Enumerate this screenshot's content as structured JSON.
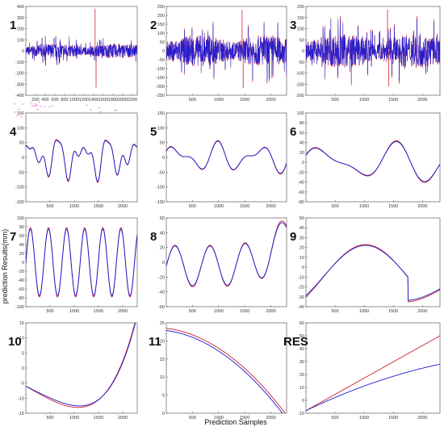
{
  "figure": {
    "ylabel": "prediction Results(mm)",
    "xlabel": "Prediction Samples",
    "series_colors": {
      "actual": "#d0202a",
      "predicted": "#1a1ad8"
    }
  },
  "chart_data": [
    {
      "type": "line",
      "label": "1",
      "xlim": [
        0,
        2300
      ],
      "ylim": [
        -400,
        400
      ],
      "xticks": [
        200,
        400,
        600,
        800,
        1000,
        1200,
        1400,
        1600,
        1800,
        2000,
        2200
      ],
      "yticks": [
        -400,
        -300,
        -200,
        -100,
        0,
        100,
        200,
        300,
        400
      ],
      "pattern": "noise",
      "amp": 60,
      "spikes": [
        [
          1430,
          380
        ],
        [
          1450,
          -330
        ]
      ],
      "pink": true
    },
    {
      "type": "line",
      "label": "2",
      "xlim": [
        0,
        2300
      ],
      "ylim": [
        -250,
        250
      ],
      "xticks": [
        500,
        1000,
        1500,
        2000
      ],
      "yticks": [
        -250,
        -200,
        -150,
        -100,
        -50,
        0,
        50,
        100,
        150,
        200,
        250
      ],
      "pattern": "noise",
      "amp": 80,
      "spikes": [
        [
          1450,
          230
        ],
        [
          1470,
          -210
        ]
      ],
      "pink": false
    },
    {
      "type": "line",
      "label": "3",
      "xlim": [
        0,
        2300
      ],
      "ylim": [
        -200,
        200
      ],
      "xticks": [
        500,
        1000,
        1500,
        2000
      ],
      "yticks": [
        -200,
        -150,
        -100,
        -50,
        0,
        50,
        100,
        150,
        200
      ],
      "pattern": "noise",
      "amp": 70,
      "spikes": [
        [
          1400,
          185
        ],
        [
          1420,
          -160
        ]
      ],
      "pink": false
    },
    {
      "type": "line",
      "label": "4",
      "xlim": [
        0,
        2300
      ],
      "ylim": [
        -150,
        150
      ],
      "xticks": [
        500,
        1000,
        1500,
        2000
      ],
      "yticks": [
        -150,
        -100,
        -50,
        0,
        50,
        100,
        150
      ],
      "pattern": "wave",
      "freqs": [
        [
          0.012,
          45
        ],
        [
          0.019,
          30
        ],
        [
          0.031,
          18
        ]
      ],
      "pink": false
    },
    {
      "type": "line",
      "label": "5",
      "xlim": [
        0,
        2300
      ],
      "ylim": [
        -150,
        150
      ],
      "xticks": [
        500,
        1000,
        1500,
        2000
      ],
      "yticks": [
        -150,
        -100,
        -50,
        0,
        50,
        100,
        150
      ],
      "pattern": "wave",
      "freqs": [
        [
          0.008,
          35
        ],
        [
          0.013,
          22
        ]
      ],
      "pink": false
    },
    {
      "type": "line",
      "label": "6",
      "xlim": [
        0,
        2300
      ],
      "ylim": [
        -80,
        100
      ],
      "xticks": [
        500,
        1000,
        1500,
        2000
      ],
      "yticks": [
        -80,
        -60,
        -40,
        -20,
        0,
        20,
        40,
        60,
        80,
        100
      ],
      "pattern": "wave",
      "freqs": [
        [
          0.0052,
          30
        ],
        [
          0.0081,
          15
        ]
      ],
      "pink": false
    },
    {
      "type": "line",
      "label": "7",
      "xlim": [
        0,
        2300
      ],
      "ylim": [
        -100,
        100
      ],
      "xticks": [
        500,
        1000,
        1500,
        2000
      ],
      "yticks": [
        -100,
        -80,
        -60,
        -40,
        -20,
        0,
        20,
        40,
        60,
        80,
        100
      ],
      "pattern": "wave",
      "freqs": [
        [
          0.0168,
          78
        ]
      ],
      "pink": false
    },
    {
      "type": "line",
      "label": "8",
      "xlim": [
        0,
        2300
      ],
      "ylim": [
        -60,
        60
      ],
      "xticks": [
        500,
        1000,
        1500,
        2000
      ],
      "yticks": [
        -60,
        -40,
        -20,
        0,
        20,
        40,
        60
      ],
      "pattern": "wave",
      "freqs": [
        [
          0.0094,
          28
        ]
      ],
      "trend": true,
      "pink": false
    },
    {
      "type": "line",
      "label": "9",
      "xlim": [
        0,
        2300
      ],
      "ylim": [
        -40,
        50
      ],
      "xticks": [
        500,
        1000,
        1500,
        2000
      ],
      "yticks": [
        -40,
        -30,
        -20,
        -10,
        0,
        10,
        20,
        30,
        40,
        50
      ],
      "pattern": "curve9",
      "pink": false
    },
    {
      "type": "line",
      "label": "10",
      "xlim": [
        0,
        2300
      ],
      "ylim": [
        -15,
        15
      ],
      "xticks": [
        500,
        1000,
        1500,
        2000
      ],
      "yticks": [
        -15,
        -10,
        -5,
        0,
        5,
        10,
        15
      ],
      "pattern": "curve10",
      "pink": false
    },
    {
      "type": "line",
      "label": "11",
      "xlim": [
        0,
        2300
      ],
      "ylim": [
        0,
        25
      ],
      "xticks": [
        500,
        1000,
        1500,
        2000
      ],
      "yticks": [
        0,
        5,
        10,
        15,
        20,
        25
      ],
      "pattern": "curve11",
      "pink": false
    },
    {
      "type": "line",
      "label": "RES",
      "xlim": [
        0,
        2300
      ],
      "ylim": [
        -10,
        60
      ],
      "xticks": [
        500,
        1000,
        1500,
        2000
      ],
      "yticks": [
        -10,
        0,
        10,
        20,
        30,
        40,
        50,
        60
      ],
      "pattern": "curveRES",
      "pink": false
    }
  ]
}
